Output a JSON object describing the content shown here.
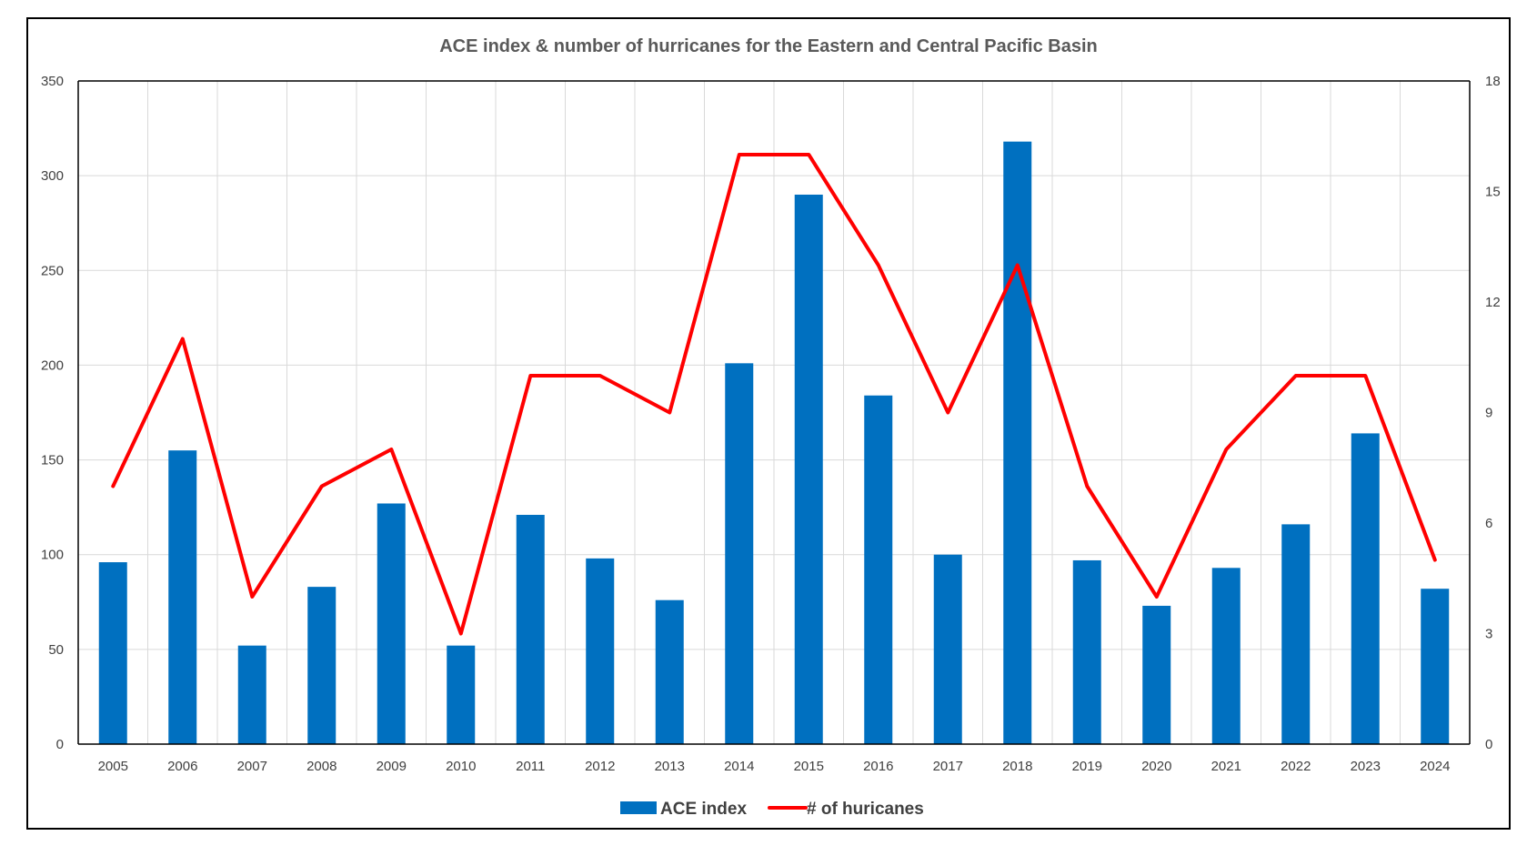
{
  "chart_data": {
    "type": "bar",
    "title": "ACE index & number of hurricanes for the Eastern and Central Pacific Basin",
    "categories": [
      "2005",
      "2006",
      "2007",
      "2008",
      "2009",
      "2010",
      "2011",
      "2012",
      "2013",
      "2014",
      "2015",
      "2016",
      "2017",
      "2018",
      "2019",
      "2020",
      "2021",
      "2022",
      "2023",
      "2024"
    ],
    "series": [
      {
        "name": "ACE index",
        "type": "bar",
        "axis": "left",
        "color": "#0070C0",
        "values": [
          96,
          155,
          52,
          83,
          127,
          52,
          121,
          98,
          76,
          201,
          290,
          184,
          100,
          318,
          97,
          73,
          93,
          116,
          164,
          82
        ]
      },
      {
        "name": "# of huricanes",
        "type": "line",
        "axis": "right",
        "color": "#FF0000",
        "values": [
          7,
          11,
          4,
          7,
          8,
          3,
          10,
          10,
          9,
          16,
          16,
          13,
          9,
          13,
          7,
          4,
          8,
          10,
          10,
          5
        ]
      }
    ],
    "y_left": {
      "min": 0,
      "max": 350,
      "ticks": [
        0,
        50,
        100,
        150,
        200,
        250,
        300,
        350
      ]
    },
    "y_right": {
      "min": 0,
      "max": 18,
      "ticks": [
        0,
        3,
        6,
        9,
        12,
        15,
        18
      ]
    },
    "grid": true,
    "legend_position": "bottom",
    "gridline_color": "#D9D9D9"
  }
}
